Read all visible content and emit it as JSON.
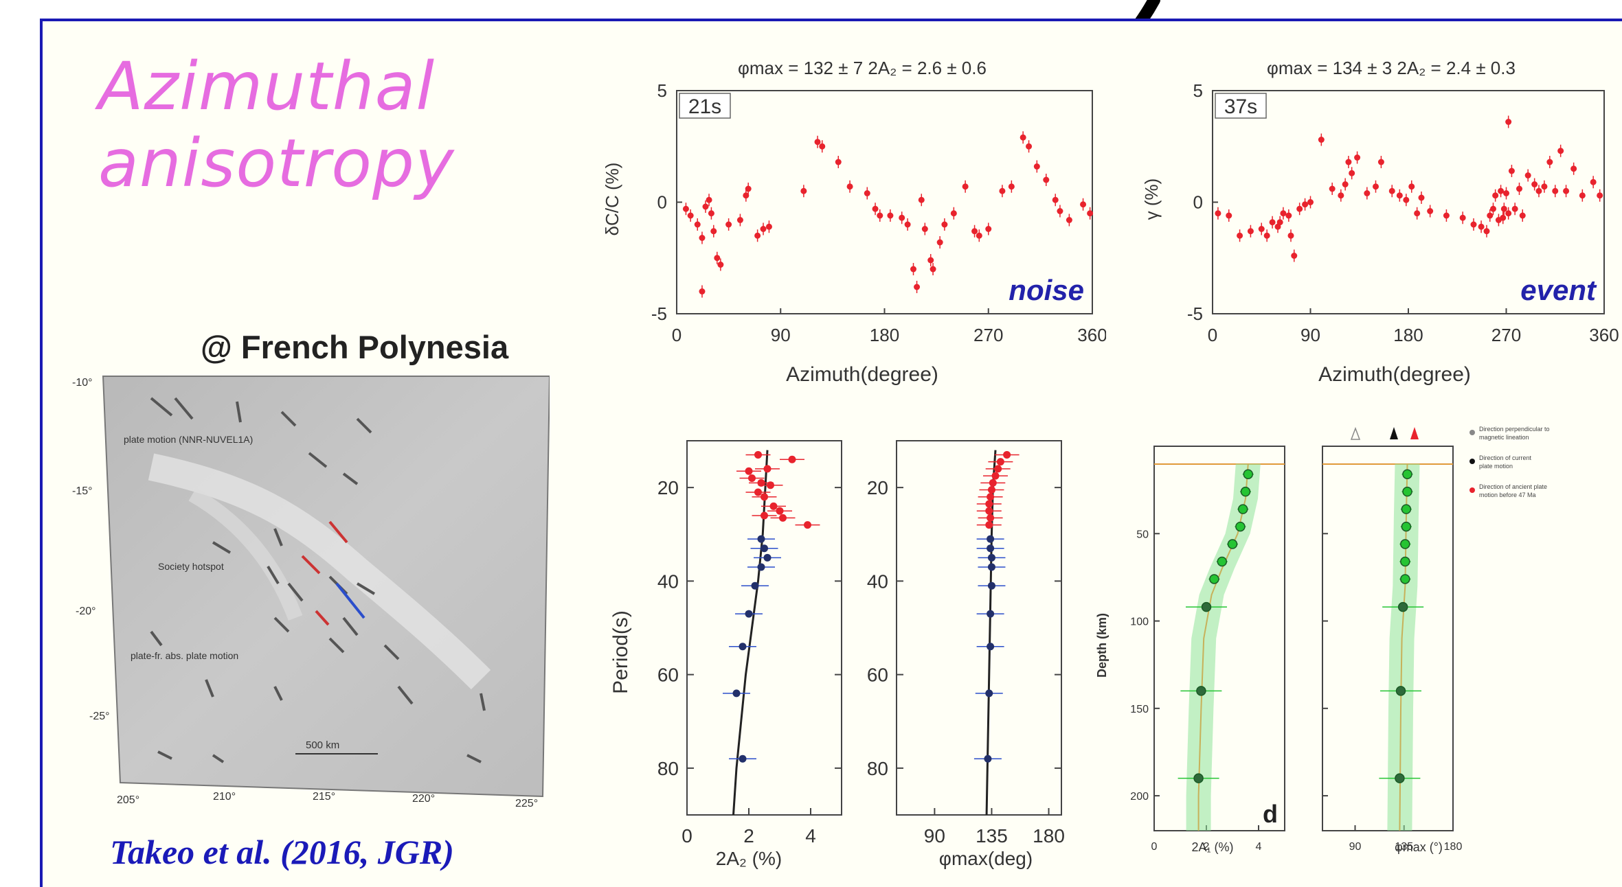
{
  "slide": {
    "title": "Azimuthal\nanisotropy",
    "location_label": "@ French Polynesia",
    "citation": "Takeo et al. (2016, JGR)"
  },
  "map": {
    "lat_ticks": [
      "-10°",
      "-15°",
      "-20°",
      "-25°"
    ],
    "lon_ticks": [
      "205°",
      "210°",
      "215°",
      "220°",
      "225°"
    ],
    "annotations": [
      "plate motion (NNR-NUVEL1A)",
      "Society hotspot",
      "plate-fr. abs. plate motion"
    ],
    "scale": "500 km"
  },
  "chart_data": [
    {
      "type": "scatter",
      "id": "noise",
      "title": "φmax = 132 ± 7  2A₂ = 2.6 ± 0.6",
      "period_label": "21s",
      "tag": "noise",
      "xlabel": "Azimuth(degree)",
      "ylabel": "δC/C (%)",
      "xlim": [
        0,
        360
      ],
      "ylim": [
        -5,
        5
      ],
      "xticks": [
        "0",
        "90",
        "180",
        "270",
        "360"
      ],
      "yticks": [
        "5",
        "0",
        "-5"
      ],
      "points": [
        [
          8,
          -0.3
        ],
        [
          12,
          -0.6
        ],
        [
          18,
          -1
        ],
        [
          22,
          -1.6
        ],
        [
          25,
          -0.2
        ],
        [
          28,
          0.1
        ],
        [
          30,
          -0.5
        ],
        [
          32,
          -1.3
        ],
        [
          35,
          -2.5
        ],
        [
          38,
          -2.8
        ],
        [
          22,
          -4
        ],
        [
          45,
          -1
        ],
        [
          55,
          -0.8
        ],
        [
          60,
          0.3
        ],
        [
          62,
          0.6
        ],
        [
          70,
          -1.5
        ],
        [
          75,
          -1.2
        ],
        [
          80,
          -1.1
        ],
        [
          110,
          0.5
        ],
        [
          122,
          2.7
        ],
        [
          126,
          2.5
        ],
        [
          140,
          1.8
        ],
        [
          150,
          0.7
        ],
        [
          165,
          0.4
        ],
        [
          172,
          -0.3
        ],
        [
          176,
          -0.6
        ],
        [
          185,
          -0.6
        ],
        [
          195,
          -0.7
        ],
        [
          200,
          -1
        ],
        [
          205,
          -3
        ],
        [
          208,
          -3.8
        ],
        [
          212,
          0.1
        ],
        [
          215,
          -1.2
        ],
        [
          220,
          -2.6
        ],
        [
          222,
          -3
        ],
        [
          228,
          -1.8
        ],
        [
          232,
          -1
        ],
        [
          240,
          -0.5
        ],
        [
          250,
          0.7
        ],
        [
          258,
          -1.3
        ],
        [
          262,
          -1.5
        ],
        [
          270,
          -1.2
        ],
        [
          282,
          0.5
        ],
        [
          290,
          0.7
        ],
        [
          300,
          2.9
        ],
        [
          305,
          2.5
        ],
        [
          312,
          1.6
        ],
        [
          320,
          1
        ],
        [
          328,
          0.1
        ],
        [
          332,
          -0.4
        ],
        [
          340,
          -0.8
        ],
        [
          352,
          -0.1
        ],
        [
          358,
          -0.5
        ]
      ]
    },
    {
      "type": "scatter",
      "id": "event",
      "title": "φmax = 134 ± 3  2A₂ = 2.4 ± 0.3",
      "period_label": "37s",
      "tag": "event",
      "xlabel": "Azimuth(degree)",
      "ylabel": "γ (%)",
      "xlim": [
        0,
        360
      ],
      "ylim": [
        -5,
        5
      ],
      "xticks": [
        "0",
        "90",
        "180",
        "270",
        "360"
      ],
      "yticks": [
        "5",
        "0",
        "-5"
      ],
      "points": [
        [
          5,
          -0.5
        ],
        [
          15,
          -0.6
        ],
        [
          25,
          -1.5
        ],
        [
          35,
          -1.3
        ],
        [
          45,
          -1.2
        ],
        [
          50,
          -1.5
        ],
        [
          55,
          -0.9
        ],
        [
          60,
          -1.1
        ],
        [
          62,
          -0.9
        ],
        [
          65,
          -0.5
        ],
        [
          70,
          -0.6
        ],
        [
          72,
          -1.5
        ],
        [
          75,
          -2.4
        ],
        [
          80,
          -0.3
        ],
        [
          85,
          -0.1
        ],
        [
          90,
          0
        ],
        [
          100,
          2.8
        ],
        [
          110,
          0.6
        ],
        [
          118,
          0.3
        ],
        [
          122,
          0.8
        ],
        [
          125,
          1.8
        ],
        [
          128,
          1.3
        ],
        [
          133,
          2
        ],
        [
          142,
          0.4
        ],
        [
          150,
          0.7
        ],
        [
          155,
          1.8
        ],
        [
          165,
          0.5
        ],
        [
          172,
          0.3
        ],
        [
          178,
          0.1
        ],
        [
          183,
          0.7
        ],
        [
          188,
          -0.5
        ],
        [
          192,
          0.2
        ],
        [
          200,
          -0.4
        ],
        [
          215,
          -0.6
        ],
        [
          230,
          -0.7
        ],
        [
          240,
          -1
        ],
        [
          247,
          -1.1
        ],
        [
          252,
          -1.3
        ],
        [
          255,
          -0.6
        ],
        [
          258,
          -0.3
        ],
        [
          260,
          0.3
        ],
        [
          263,
          -0.8
        ],
        [
          265,
          0.5
        ],
        [
          267,
          -0.7
        ],
        [
          268,
          -0.3
        ],
        [
          270,
          0.4
        ],
        [
          272,
          -0.5
        ],
        [
          272,
          3.6
        ],
        [
          275,
          1.4
        ],
        [
          278,
          -0.3
        ],
        [
          282,
          0.6
        ],
        [
          285,
          -0.6
        ],
        [
          290,
          1.2
        ],
        [
          296,
          0.8
        ],
        [
          300,
          0.5
        ],
        [
          305,
          0.7
        ],
        [
          310,
          1.8
        ],
        [
          315,
          0.5
        ],
        [
          320,
          2.3
        ],
        [
          325,
          0.5
        ],
        [
          332,
          1.5
        ],
        [
          340,
          0.3
        ],
        [
          350,
          0.9
        ],
        [
          356,
          0.3
        ]
      ]
    },
    {
      "type": "line",
      "id": "amplitude_period",
      "xlabel": "2A₂ (%)",
      "ylabel": "Period(s)",
      "xlim": [
        0,
        5
      ],
      "ylim": [
        10,
        90
      ],
      "xticks": [
        "0",
        "2",
        "4"
      ],
      "yticks": [
        "20",
        "40",
        "60",
        "80"
      ],
      "red_points": [
        [
          2.3,
          13
        ],
        [
          3.4,
          14
        ],
        [
          2.6,
          16
        ],
        [
          2.0,
          16.5
        ],
        [
          2.1,
          18
        ],
        [
          2.4,
          19
        ],
        [
          2.7,
          19.5
        ],
        [
          2.3,
          21
        ],
        [
          2.5,
          22
        ],
        [
          2.8,
          24
        ],
        [
          3.0,
          25
        ],
        [
          2.5,
          26
        ],
        [
          3.1,
          26.5
        ],
        [
          3.9,
          28
        ]
      ],
      "blue_points": [
        [
          2.4,
          31
        ],
        [
          2.5,
          33
        ],
        [
          2.6,
          35
        ],
        [
          2.4,
          37
        ],
        [
          2.2,
          41
        ],
        [
          2.0,
          47
        ],
        [
          1.8,
          54
        ],
        [
          1.6,
          64
        ],
        [
          1.8,
          78
        ]
      ],
      "fit_line": [
        [
          2.6,
          12
        ],
        [
          2.45,
          30
        ],
        [
          2.3,
          40
        ],
        [
          2.1,
          50
        ],
        [
          1.9,
          60
        ],
        [
          1.75,
          70
        ],
        [
          1.6,
          80
        ],
        [
          1.5,
          90
        ]
      ]
    },
    {
      "type": "line",
      "id": "direction_period",
      "xlabel": "φmax(deg)",
      "ylabel": "",
      "xlim": [
        60,
        190
      ],
      "ylim": [
        10,
        90
      ],
      "xticks": [
        "90",
        "135",
        "180"
      ],
      "yticks": [
        "20",
        "40",
        "60",
        "80"
      ],
      "red_points": [
        [
          147,
          13
        ],
        [
          142,
          14.5
        ],
        [
          140,
          16
        ],
        [
          138,
          17.5
        ],
        [
          136,
          19
        ],
        [
          135,
          20.5
        ],
        [
          134,
          22
        ],
        [
          133,
          23.5
        ],
        [
          133,
          25
        ],
        [
          134,
          26.5
        ],
        [
          133,
          28
        ]
      ],
      "blue_points": [
        [
          134,
          31
        ],
        [
          134,
          33
        ],
        [
          135,
          35
        ],
        [
          135,
          37
        ],
        [
          135,
          41
        ],
        [
          134,
          47
        ],
        [
          134,
          54
        ],
        [
          133,
          64
        ],
        [
          132,
          78
        ]
      ],
      "fit_line": [
        [
          138,
          12
        ],
        [
          136,
          20
        ],
        [
          135,
          30
        ],
        [
          134,
          45
        ],
        [
          133,
          60
        ],
        [
          132,
          75
        ],
        [
          131,
          90
        ]
      ]
    },
    {
      "type": "line",
      "id": "amplitude_depth",
      "xlabel": "2A₁ (%)",
      "ylabel": "Depth (km)",
      "xlim": [
        0,
        5
      ],
      "ylim": [
        0,
        220
      ],
      "xticks": [
        "0",
        "2",
        "4"
      ],
      "yticks": [
        "50",
        "100",
        "150",
        "200"
      ],
      "points": [
        [
          3.6,
          16
        ],
        [
          3.5,
          26
        ],
        [
          3.4,
          36
        ],
        [
          3.3,
          46
        ],
        [
          3.0,
          56
        ],
        [
          2.6,
          66
        ],
        [
          2.3,
          76
        ],
        [
          2.0,
          92
        ],
        [
          1.8,
          140
        ],
        [
          1.7,
          190
        ]
      ],
      "model_line": [
        [
          3.6,
          10
        ],
        [
          3.5,
          30
        ],
        [
          3.2,
          50
        ],
        [
          2.6,
          70
        ],
        [
          2.2,
          85
        ],
        [
          1.9,
          110
        ],
        [
          1.8,
          150
        ],
        [
          1.7,
          200
        ],
        [
          1.7,
          220
        ]
      ],
      "tag": "d"
    },
    {
      "type": "line",
      "id": "direction_depth",
      "xlabel": "φmax (°)",
      "ylabel": "",
      "xlim": [
        60,
        180
      ],
      "ylim": [
        0,
        220
      ],
      "xticks": [
        "90",
        "135",
        "180"
      ],
      "yticks": [],
      "points": [
        [
          138,
          16
        ],
        [
          138,
          26
        ],
        [
          137,
          36
        ],
        [
          137,
          46
        ],
        [
          136,
          56
        ],
        [
          136,
          66
        ],
        [
          136,
          76
        ],
        [
          134,
          92
        ],
        [
          132,
          140
        ],
        [
          131,
          190
        ]
      ],
      "model_line": [
        [
          138,
          10
        ],
        [
          137,
          40
        ],
        [
          136,
          80
        ],
        [
          133,
          110
        ],
        [
          132,
          150
        ],
        [
          131,
          220
        ]
      ],
      "legend_items": [
        "Direction perpendicular to magnetic lineation",
        "Direction of current plate motion",
        "Direction of ancient plate motion before 47 Ma"
      ]
    }
  ],
  "colors": {
    "title": "#e66ce0",
    "frame": "#1a1ab4",
    "citation": "#1a1ab8",
    "red": "#e8232d",
    "blue": "#2b4ecb",
    "green": "#25c433",
    "tag": "#2222aa"
  }
}
